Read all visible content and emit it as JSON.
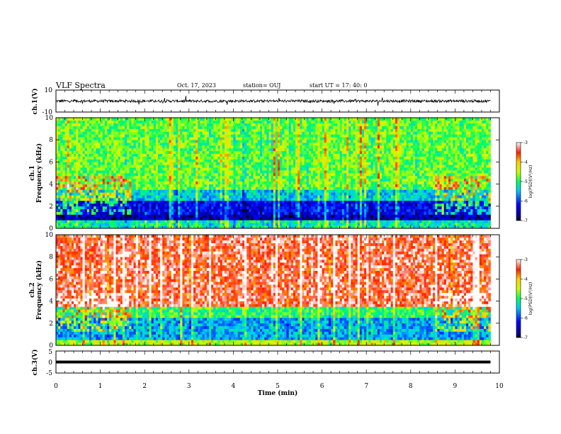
{
  "header": {
    "title": "VLF Spectra",
    "date": "Oct. 17, 2023",
    "station": "station= OUJ",
    "start": "start  UT  =   17: 40: 0"
  },
  "chart_data": [
    {
      "type": "line",
      "name": "ch1-waveform",
      "ylabel": "ch.1(V)",
      "ylim": [
        -10,
        10
      ],
      "ytick_labels": [
        "10",
        "-10"
      ],
      "baseline": 0,
      "noise_amplitude": 1.2
    },
    {
      "type": "heatmap",
      "name": "ch1-spectrogram",
      "ylabel": "ch.1 Frequency (kHz)",
      "ylabel_channel": "ch.1",
      "ylabel_quantity": "Frequency (kHz)",
      "ylim": [
        0,
        10
      ],
      "ytick_labels": [
        "0",
        "2",
        "4",
        "6",
        "8",
        "10"
      ],
      "xlim": [
        0,
        9.8
      ],
      "colorbar": {
        "label": "log(PSD)(V²/Hz)",
        "range": [
          -7,
          -3
        ],
        "tick_labels": [
          "-3",
          "-4",
          "-5",
          "-6",
          "-7"
        ]
      },
      "bands": [
        {
          "f0": 0.0,
          "f1": 0.6,
          "level": -5.2
        },
        {
          "f0": 0.6,
          "f1": 1.2,
          "level": -6.6
        },
        {
          "f0": 1.2,
          "f1": 2.5,
          "level": -6.3
        },
        {
          "f0": 2.5,
          "f1": 3.5,
          "level": -5.4
        },
        {
          "f0": 3.5,
          "f1": 10.0,
          "level": -4.8
        }
      ]
    },
    {
      "type": "heatmap",
      "name": "ch2-spectrogram",
      "ylabel": "ch.2 Frequency (kHz)",
      "ylabel_channel": "ch.2",
      "ylabel_quantity": "Frequency (kHz)",
      "ylim": [
        0,
        10
      ],
      "ytick_labels": [
        "0",
        "2",
        "4",
        "6",
        "8",
        "10"
      ],
      "xlim": [
        0,
        9.8
      ],
      "colorbar": {
        "label": "log(PSD)(V²/Hz)",
        "range": [
          -7,
          -3
        ],
        "tick_labels": [
          "-3",
          "-4",
          "-5",
          "-6",
          "-7"
        ]
      },
      "bands": [
        {
          "f0": 0.0,
          "f1": 0.5,
          "level": -4.5
        },
        {
          "f0": 0.5,
          "f1": 2.5,
          "level": -5.6
        },
        {
          "f0": 2.5,
          "f1": 3.5,
          "level": -5.0
        },
        {
          "f0": 3.5,
          "f1": 10.0,
          "level": -3.4
        }
      ]
    },
    {
      "type": "line",
      "name": "ch3-waveform",
      "ylabel": "ch.3(V)",
      "ylim": [
        -5,
        5
      ],
      "ytick_labels": [
        "5",
        "0",
        "-5"
      ],
      "baseline": 0
    }
  ],
  "xaxis": {
    "label": "Time  (min)",
    "xlim": [
      0,
      10
    ],
    "tick_labels": [
      "0",
      "1",
      "2",
      "3",
      "4",
      "5",
      "6",
      "7",
      "8",
      "9",
      "10"
    ]
  }
}
